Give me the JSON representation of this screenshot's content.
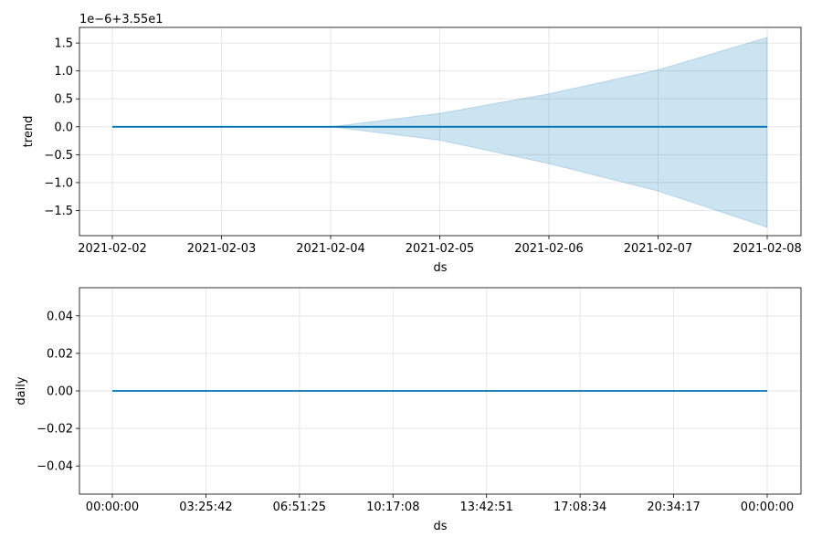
{
  "colors": {
    "line": "#0072B2",
    "band": "#0072B2",
    "grid": "#e6e6e6",
    "axes": "#000000"
  },
  "chart_data": [
    {
      "type": "line",
      "ylabel": "trend",
      "xlabel": "ds",
      "offset_text": "1e−6+3.55e1",
      "grid": true,
      "x_ticks": [
        "2021-02-02",
        "2021-02-03",
        "2021-02-04",
        "2021-02-05",
        "2021-02-06",
        "2021-02-07",
        "2021-02-08"
      ],
      "x": [
        "2021-02-02",
        "2021-02-03",
        "2021-02-04",
        "2021-02-05",
        "2021-02-06",
        "2021-02-07",
        "2021-02-08"
      ],
      "y_ticks": [
        1.5,
        1.0,
        0.5,
        0.0,
        -0.5,
        -1.0,
        -1.5
      ],
      "y_tick_labels": [
        "1.5",
        "1.0",
        "0.5",
        "0.0",
        "−0.5",
        "−1.0",
        "−1.5"
      ],
      "ylim": [
        -1.95,
        1.78
      ],
      "series": [
        {
          "values": [
            0,
            0,
            0,
            0,
            0,
            0,
            0
          ],
          "upper": [
            0,
            0,
            0,
            0.24,
            0.59,
            1.02,
            1.6
          ],
          "lower": [
            0,
            0,
            0,
            -0.24,
            -0.66,
            -1.15,
            -1.8
          ]
        }
      ]
    },
    {
      "type": "line",
      "ylabel": "daily",
      "xlabel": "ds",
      "grid": true,
      "x_ticks": [
        "00:00:00",
        "03:25:42",
        "06:51:25",
        "10:17:08",
        "13:42:51",
        "17:08:34",
        "20:34:17",
        "00:00:00"
      ],
      "x": [
        "00:00:00",
        "03:25:42",
        "06:51:25",
        "10:17:08",
        "13:42:51",
        "17:08:34",
        "20:34:17",
        "00:00:00"
      ],
      "y_ticks": [
        0.04,
        0.02,
        0.0,
        -0.02,
        -0.04
      ],
      "y_tick_labels": [
        "0.04",
        "0.02",
        "0.00",
        "−0.02",
        "−0.04"
      ],
      "ylim": [
        -0.055,
        0.055
      ],
      "series": [
        {
          "values": [
            0,
            0,
            0,
            0,
            0,
            0,
            0,
            0
          ]
        }
      ]
    }
  ]
}
